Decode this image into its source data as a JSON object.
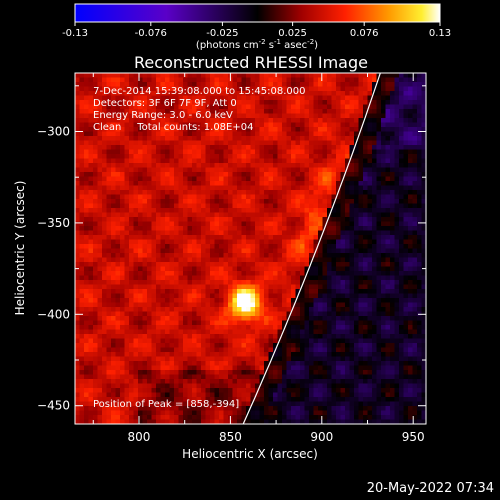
{
  "chart_data": {
    "type": "heatmap",
    "title": "Reconstructed RHESSI Image",
    "colorbar": {
      "label_main": "(photons cm",
      "label_exp1": "-2",
      "label_s": " s",
      "label_exp2": "-1",
      "label_asec": " asec",
      "label_exp3": "-2",
      "label_close": ")",
      "ticks": [
        "-0.13",
        "-0.076",
        "-0.025",
        "0.025",
        "0.076",
        "0.13"
      ],
      "range": [
        -0.13,
        0.13
      ],
      "colormap": "blue-purple-black-red-orange-yellow-white"
    },
    "xlabel": "Heliocentric X (arcsec)",
    "ylabel": "Heliocentric Y (arcsec)",
    "xlim": [
      765,
      957
    ],
    "ylim": [
      -460,
      -268
    ],
    "xticks": [
      {
        "value": 800,
        "label": "800"
      },
      {
        "value": 850,
        "label": "850"
      },
      {
        "value": 900,
        "label": "900"
      },
      {
        "value": 950,
        "label": "950"
      }
    ],
    "yticks": [
      {
        "value": -300,
        "label": "−300"
      },
      {
        "value": -350,
        "label": "−350"
      },
      {
        "value": -400,
        "label": "−400"
      },
      {
        "value": -450,
        "label": "−450"
      }
    ],
    "annotations": [
      " 7-Dec-2014 15:39:08.000 to 15:45:08.000",
      "Detectors: 3F 6F 7F 9F, Att 0",
      "Energy Range: 3.0 - 6.0 keV",
      "Clean     Total counts: 1.08E+04"
    ],
    "peak_label": "Position of Peak = [858,-394]",
    "peak": [
      858,
      -394
    ],
    "limb_curve": [
      [
        857,
        -460
      ],
      [
        900,
        -360
      ],
      [
        932,
        -268
      ]
    ],
    "limb_color": "#ffffff"
  },
  "timestamp": "20-May-2022 07:34"
}
